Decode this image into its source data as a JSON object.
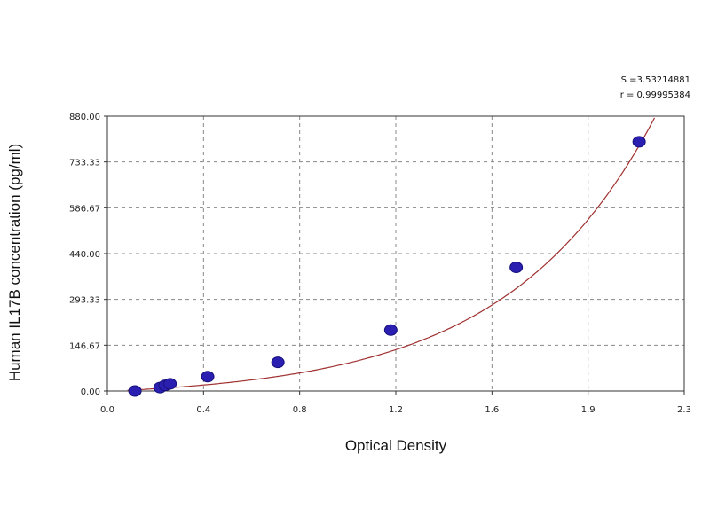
{
  "chart_data": {
    "type": "scatter",
    "title": "",
    "xlabel": "Optical Density",
    "ylabel": "Human IL17B concentration (pg/ml)",
    "xlim": [
      0.0,
      2.3
    ],
    "ylim": [
      0.0,
      880.0
    ],
    "x_ticks": [
      "0.0",
      "0.4",
      "0.8",
      "1.2",
      "1.6",
      "1.9",
      "2.3"
    ],
    "y_ticks": [
      "0.00",
      "146.67",
      "293.33",
      "440.00",
      "586.67",
      "733.33",
      "880.00"
    ],
    "grid": true,
    "stats": [
      "S =3.53214881",
      "r = 0.99995384"
    ],
    "colors": {
      "points": "#2a1fb0",
      "curve": "#a03030",
      "grid": "#888888"
    },
    "series": [
      {
        "points": [
          {
            "x": 0.11,
            "y": 0.0
          },
          {
            "x": 0.21,
            "y": 11.0
          },
          {
            "x": 0.23,
            "y": 18.0
          },
          {
            "x": 0.25,
            "y": 23.0
          },
          {
            "x": 0.4,
            "y": 46.0
          },
          {
            "x": 0.68,
            "y": 92.0
          },
          {
            "x": 1.13,
            "y": 195.0
          },
          {
            "x": 1.63,
            "y": 396.0
          },
          {
            "x": 2.12,
            "y": 798.0
          }
        ]
      }
    ]
  }
}
